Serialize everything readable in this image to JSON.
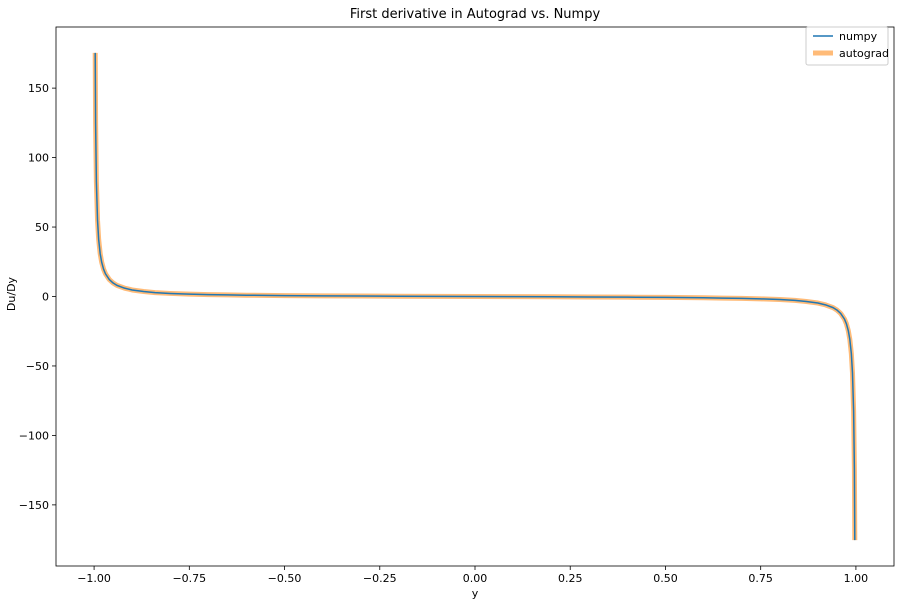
{
  "chart_data": {
    "type": "line",
    "title": "First derivative in Autograd vs. Numpy",
    "xlabel": "y",
    "ylabel": "Du/Dy",
    "xlim": [
      -1.1,
      1.1
    ],
    "ylim": [
      -194,
      194
    ],
    "xticks": [
      -1.0,
      -0.75,
      -0.5,
      -0.25,
      0.0,
      0.25,
      0.5,
      0.75,
      1.0
    ],
    "xtick_labels": [
      "−1.00",
      "−0.75",
      "−0.50",
      "−0.25",
      "0.00",
      "0.25",
      "0.50",
      "0.75",
      "1.00"
    ],
    "yticks": [
      150,
      100,
      50,
      0,
      -50,
      -100,
      -150
    ],
    "ytick_labels": [
      "150",
      "100",
      "50",
      "0",
      "−50",
      "−100",
      "−150"
    ],
    "grid": false,
    "legend_position": "top-right",
    "x": [
      -0.9971,
      -0.996,
      -0.994,
      -0.991,
      -0.988,
      -0.984,
      -0.98,
      -0.975,
      -0.97,
      -0.96,
      -0.95,
      -0.94,
      -0.92,
      -0.9,
      -0.87,
      -0.84,
      -0.8,
      -0.75,
      -0.7,
      -0.65,
      -0.6,
      -0.5,
      -0.4,
      -0.3,
      -0.2,
      -0.1,
      0.0,
      0.1,
      0.2,
      0.3,
      0.4,
      0.5,
      0.6,
      0.65,
      0.7,
      0.75,
      0.8,
      0.84,
      0.87,
      0.9,
      0.92,
      0.94,
      0.95,
      0.96,
      0.97,
      0.975,
      0.98,
      0.984,
      0.988,
      0.991,
      0.994,
      0.996,
      0.9971
    ],
    "series": [
      {
        "name": "numpy",
        "color": "#1f77b4",
        "values": [
          175.4,
          124.5,
          82.5,
          55.0,
          41.1,
          30.8,
          24.6,
          19.6,
          16.3,
          12.2,
          9.7,
          8.0,
          6.0,
          4.7,
          3.6,
          2.8,
          2.2,
          1.7,
          1.37,
          1.14,
          0.94,
          0.67,
          0.48,
          0.33,
          0.2,
          0.1,
          0.0,
          -0.1,
          -0.2,
          -0.33,
          -0.48,
          -0.67,
          -0.94,
          -1.14,
          -1.37,
          -1.7,
          -2.2,
          -2.8,
          -3.6,
          -4.7,
          -6.0,
          -8.0,
          -9.7,
          -12.2,
          -16.3,
          -19.6,
          -24.6,
          -30.8,
          -41.1,
          -55.0,
          -82.5,
          -124.5,
          -175.4
        ]
      },
      {
        "name": "autograd",
        "color": "#ffbb78",
        "values": [
          175.4,
          124.5,
          82.5,
          55.0,
          41.1,
          30.8,
          24.6,
          19.6,
          16.3,
          12.2,
          9.7,
          8.0,
          6.0,
          4.7,
          3.6,
          2.8,
          2.2,
          1.7,
          1.37,
          1.14,
          0.94,
          0.67,
          0.48,
          0.33,
          0.2,
          0.1,
          0.0,
          -0.1,
          -0.2,
          -0.33,
          -0.48,
          -0.67,
          -0.94,
          -1.14,
          -1.37,
          -1.7,
          -2.2,
          -2.8,
          -3.6,
          -4.7,
          -6.0,
          -8.0,
          -9.7,
          -12.2,
          -16.3,
          -19.6,
          -24.6,
          -30.8,
          -41.1,
          -55.0,
          -82.5,
          -124.5,
          -175.4
        ]
      }
    ]
  }
}
